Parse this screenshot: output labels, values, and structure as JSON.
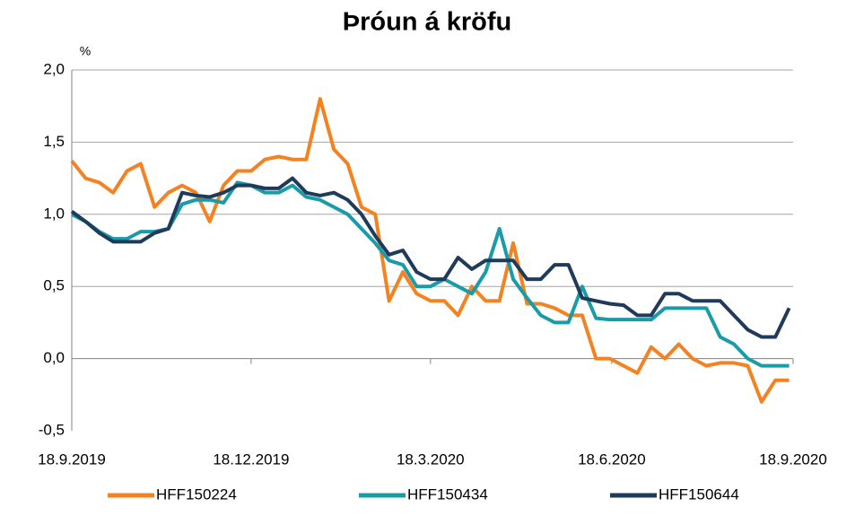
{
  "chart_data": {
    "type": "line",
    "title": "Þróun á kröfu",
    "y_unit": "%",
    "x": [
      "2019-09-18",
      "2019-09-25",
      "2019-10-02",
      "2019-10-09",
      "2019-10-16",
      "2019-10-23",
      "2019-10-30",
      "2019-11-06",
      "2019-11-13",
      "2019-11-20",
      "2019-11-27",
      "2019-12-04",
      "2019-12-11",
      "2019-12-18",
      "2019-12-25",
      "2020-01-01",
      "2020-01-08",
      "2020-01-15",
      "2020-01-22",
      "2020-01-29",
      "2020-02-05",
      "2020-02-12",
      "2020-02-19",
      "2020-02-26",
      "2020-03-04",
      "2020-03-11",
      "2020-03-18",
      "2020-03-25",
      "2020-04-01",
      "2020-04-08",
      "2020-04-15",
      "2020-04-22",
      "2020-04-29",
      "2020-05-06",
      "2020-05-13",
      "2020-05-20",
      "2020-05-27",
      "2020-06-03",
      "2020-06-10",
      "2020-06-17",
      "2020-06-24",
      "2020-07-01",
      "2020-07-08",
      "2020-07-15",
      "2020-07-22",
      "2020-07-29",
      "2020-08-05",
      "2020-08-12",
      "2020-08-19",
      "2020-08-26",
      "2020-09-02",
      "2020-09-09",
      "2020-09-16"
    ],
    "series": [
      {
        "name": "HFF150224",
        "color": "#f58220",
        "values": [
          1.37,
          1.25,
          1.22,
          1.15,
          1.3,
          1.35,
          1.05,
          1.15,
          1.2,
          1.15,
          0.95,
          1.2,
          1.3,
          1.3,
          1.38,
          1.4,
          1.38,
          1.38,
          1.8,
          1.45,
          1.35,
          1.05,
          1.0,
          0.4,
          0.6,
          0.45,
          0.4,
          0.4,
          0.3,
          0.5,
          0.4,
          0.4,
          0.8,
          0.38,
          0.38,
          0.35,
          0.3,
          0.3,
          0.0,
          0.0,
          -0.05,
          -0.1,
          0.08,
          0.0,
          0.1,
          0.0,
          -0.05,
          -0.03,
          -0.03,
          -0.05,
          -0.3,
          -0.15,
          -0.15
        ]
      },
      {
        "name": "HFF150434",
        "color": "#1a9ba8",
        "values": [
          1.0,
          0.95,
          0.88,
          0.83,
          0.83,
          0.88,
          0.88,
          0.9,
          1.07,
          1.1,
          1.1,
          1.08,
          1.22,
          1.2,
          1.15,
          1.15,
          1.2,
          1.12,
          1.1,
          1.05,
          1.0,
          0.9,
          0.8,
          0.68,
          0.65,
          0.5,
          0.5,
          0.55,
          0.5,
          0.45,
          0.6,
          0.9,
          0.55,
          0.42,
          0.3,
          0.25,
          0.25,
          0.5,
          0.28,
          0.27,
          0.27,
          0.27,
          0.27,
          0.35,
          0.35,
          0.35,
          0.35,
          0.15,
          0.1,
          0.0,
          -0.05,
          -0.05,
          -0.05
        ]
      },
      {
        "name": "HFF150644",
        "color": "#1f3a5a",
        "values": [
          1.02,
          0.95,
          0.87,
          0.81,
          0.81,
          0.81,
          0.87,
          0.9,
          1.15,
          1.13,
          1.12,
          1.15,
          1.2,
          1.2,
          1.18,
          1.18,
          1.25,
          1.15,
          1.13,
          1.15,
          1.1,
          1.0,
          0.85,
          0.72,
          0.75,
          0.6,
          0.55,
          0.55,
          0.7,
          0.62,
          0.68,
          0.68,
          0.68,
          0.55,
          0.55,
          0.65,
          0.65,
          0.42,
          0.4,
          0.38,
          0.37,
          0.3,
          0.3,
          0.45,
          0.45,
          0.4,
          0.4,
          0.4,
          0.3,
          0.2,
          0.15,
          0.15,
          0.35
        ]
      }
    ],
    "xlim": [
      "2019-09-18",
      "2020-09-18"
    ],
    "xticks": [
      {
        "value": "2019-09-18",
        "label": "18.9.2019"
      },
      {
        "value": "2019-12-18",
        "label": "18.12.2019"
      },
      {
        "value": "2020-03-18",
        "label": "18.3.2020"
      },
      {
        "value": "2020-06-18",
        "label": "18.6.2020"
      },
      {
        "value": "2020-09-18",
        "label": "18.9.2020"
      }
    ],
    "ylim": [
      -0.5,
      2.0
    ],
    "yticks": [
      {
        "value": -0.5,
        "label": "-0,5"
      },
      {
        "value": 0,
        "label": "0,0"
      },
      {
        "value": 0.5,
        "label": "0,5"
      },
      {
        "value": 1.0,
        "label": "1,0"
      },
      {
        "value": 1.5,
        "label": "1,5"
      },
      {
        "value": 2.0,
        "label": "2,0"
      }
    ],
    "grid": true,
    "legend": "bottom"
  }
}
